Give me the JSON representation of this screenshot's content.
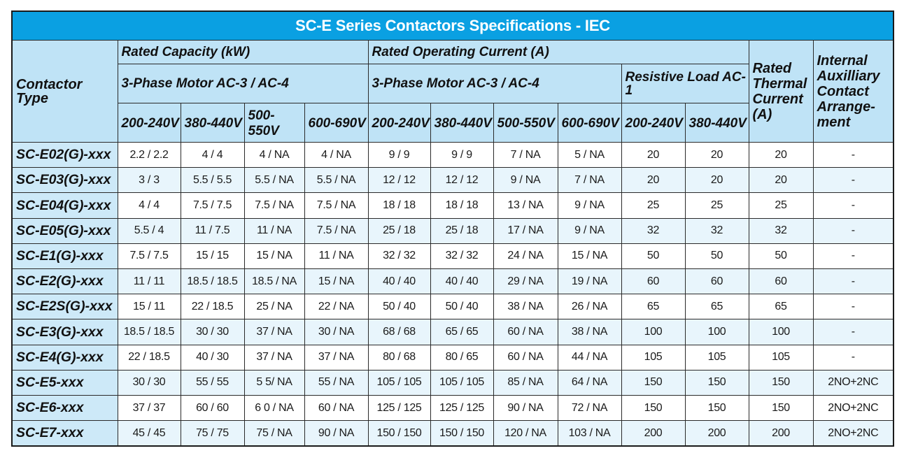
{
  "title": "SC-E Series Contactors Specifications - IEC",
  "headers": {
    "contactor_type": "Contactor Type",
    "rated_capacity": "Rated Capacity (kW)",
    "rated_operating_current": "Rated Operating Current (A)",
    "motor_capacity": "3-Phase Motor AC-3 / AC-4",
    "motor_current": "3-Phase Motor AC-3 / AC-4",
    "resistive_load": "Resistive Load AC-1",
    "rated_thermal_current": "Rated Thermal Current (A)",
    "internal_auxiliary": "Internal Auxilliary Contact Arrange-ment",
    "voltages": [
      "200-240V",
      "380-440V",
      "500-550V",
      "600-690V",
      "200-240V",
      "380-440V",
      "500-550V",
      "600-690V",
      "200-240V",
      "380-440V"
    ]
  },
  "rows": [
    {
      "type": "SC-E02(G)-xxx",
      "cap": [
        "2.2 / 2.2",
        "4 / 4",
        "4 / NA",
        "4 / NA"
      ],
      "cur": [
        "9 / 9",
        "9 / 9",
        "7 / NA",
        "5 / NA"
      ],
      "res": [
        "20",
        "20"
      ],
      "thermal": "20",
      "aux": "-"
    },
    {
      "type": "SC-E03(G)-xxx",
      "cap": [
        "3 / 3",
        "5.5 / 5.5",
        "5.5 / NA",
        "5.5 / NA"
      ],
      "cur": [
        "12 / 12",
        "12 / 12",
        "9 / NA",
        "7 / NA"
      ],
      "res": [
        "20",
        "20"
      ],
      "thermal": "20",
      "aux": "-"
    },
    {
      "type": "SC-E04(G)-xxx",
      "cap": [
        "4 / 4",
        "7.5 / 7.5",
        "7.5 / NA",
        "7.5 / NA"
      ],
      "cur": [
        "18 / 18",
        "18 / 18",
        "13 / NA",
        "9 / NA"
      ],
      "res": [
        "25",
        "25"
      ],
      "thermal": "25",
      "aux": "-"
    },
    {
      "type": "SC-E05(G)-xxx",
      "cap": [
        "5.5 / 4",
        "11 / 7.5",
        "11 / NA",
        "7.5 / NA"
      ],
      "cur": [
        "25 / 18",
        "25 / 18",
        "17 / NA",
        "9 / NA"
      ],
      "res": [
        "32",
        "32"
      ],
      "thermal": "32",
      "aux": "-"
    },
    {
      "type": "SC-E1(G)-xxx",
      "cap": [
        "7.5 / 7.5",
        "15 / 15",
        "15 / NA",
        "11 / NA"
      ],
      "cur": [
        "32 / 32",
        "32 / 32",
        "24 / NA",
        "15 / NA"
      ],
      "res": [
        "50",
        "50"
      ],
      "thermal": "50",
      "aux": "-"
    },
    {
      "type": "SC-E2(G)-xxx",
      "cap": [
        "11 / 11",
        "18.5 / 18.5",
        "18.5 / NA",
        "15 / NA"
      ],
      "cur": [
        "40 / 40",
        "40 / 40",
        "29 / NA",
        "19 / NA"
      ],
      "res": [
        "60",
        "60"
      ],
      "thermal": "60",
      "aux": "-"
    },
    {
      "type": "SC-E2S(G)-xxx",
      "cap": [
        "15 / 11",
        "22 / 18.5",
        "25 / NA",
        "22 / NA"
      ],
      "cur": [
        "50 / 40",
        "50 / 40",
        "38 / NA",
        "26 / NA"
      ],
      "res": [
        "65",
        "65"
      ],
      "thermal": "65",
      "aux": "-"
    },
    {
      "type": "SC-E3(G)-xxx",
      "cap": [
        "18.5 / 18.5",
        "30 / 30",
        "37 / NA",
        "30 / NA"
      ],
      "cur": [
        "68 / 68",
        "65 / 65",
        "60 / NA",
        "38 / NA"
      ],
      "res": [
        "100",
        "100"
      ],
      "thermal": "100",
      "aux": "-"
    },
    {
      "type": "SC-E4(G)-xxx",
      "cap": [
        "22 / 18.5",
        "40 / 30",
        "37 / NA",
        "37 / NA"
      ],
      "cur": [
        "80 / 68",
        "80 / 65",
        "60 / NA",
        "44 / NA"
      ],
      "res": [
        "105",
        "105"
      ],
      "thermal": "105",
      "aux": "-"
    },
    {
      "type": "SC-E5-xxx",
      "cap": [
        "30 / 30",
        "55 / 55",
        "5 5/ NA",
        "55 / NA"
      ],
      "cur": [
        "105 / 105",
        "105 / 105",
        "85 / NA",
        "64 / NA"
      ],
      "res": [
        "150",
        "150"
      ],
      "thermal": "150",
      "aux": "2NO+2NC"
    },
    {
      "type": "SC-E6-xxx",
      "cap": [
        "37 / 37",
        "60 / 60",
        "6 0 / NA",
        "60 / NA"
      ],
      "cur": [
        "125 / 125",
        "125 / 125",
        "90 / NA",
        "72 / NA"
      ],
      "res": [
        "150",
        "150"
      ],
      "thermal": "150",
      "aux": "2NO+2NC"
    },
    {
      "type": "SC-E7-xxx",
      "cap": [
        "45 / 45",
        "75 / 75",
        "75 / NA",
        "90 / NA"
      ],
      "cur": [
        "150 / 150",
        "150 / 150",
        "120 / NA",
        "103 / NA"
      ],
      "res": [
        "200",
        "200"
      ],
      "thermal": "200",
      "aux": "2NO+2NC"
    }
  ]
}
